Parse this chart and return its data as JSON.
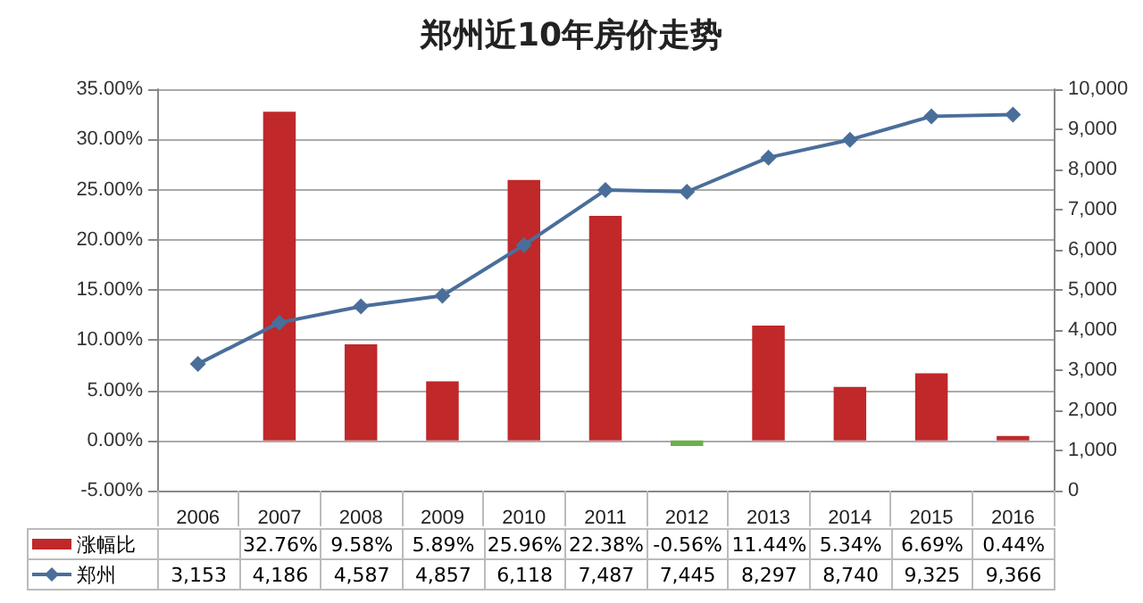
{
  "chart_data": {
    "type": "bar",
    "title": "郑州近10年房价走势",
    "categories": [
      "2006",
      "2007",
      "2008",
      "2009",
      "2010",
      "2011",
      "2012",
      "2013",
      "2014",
      "2015",
      "2016"
    ],
    "series": [
      {
        "name": "涨幅比",
        "colors": [
          "#c0282a",
          "#c0282a",
          "#c0282a",
          "#c0282a",
          "#c0282a",
          "#c0282a",
          "#6ab04c",
          "#c0282a",
          "#c0282a",
          "#c0282a",
          "#c0282a"
        ],
        "color": "#c0282a",
        "values": [
          null,
          32.76,
          9.58,
          5.89,
          25.96,
          22.38,
          -0.56,
          11.44,
          5.34,
          6.69,
          0.44
        ],
        "value_labels": [
          null,
          "32.76%",
          "9.58%",
          "5.89%",
          "25.96%",
          "22.38%",
          "-0.56%",
          "11.44%",
          "5.34%",
          "6.69%",
          "0.44%"
        ]
      },
      {
        "name": "郑州",
        "type": "line",
        "axis": "y2",
        "color": "#4a6e9a",
        "marker": "diamond",
        "values": [
          3153,
          4186,
          4587,
          4857,
          6118,
          7487,
          7445,
          8297,
          8740,
          9325,
          9366
        ],
        "value_labels": [
          "3,153",
          "4,186",
          "4,587",
          "4,857",
          "6,118",
          "7,487",
          "7,445",
          "8,297",
          "8,740",
          "9,325",
          "9,366"
        ]
      }
    ],
    "ylim": [
      -5,
      35
    ],
    "yticks": [
      {
        "value": -5,
        "label": "-5.00%"
      },
      {
        "value": 0,
        "label": "0.00%"
      },
      {
        "value": 5,
        "label": "5.00%"
      },
      {
        "value": 10,
        "label": "10.00%"
      },
      {
        "value": 15,
        "label": "15.00%"
      },
      {
        "value": 20,
        "label": "20.00%"
      },
      {
        "value": 25,
        "label": "25.00%"
      },
      {
        "value": 30,
        "label": "30.00%"
      },
      {
        "value": 35,
        "label": "35.00%"
      }
    ],
    "y2lim": [
      0,
      10000
    ],
    "y2ticks": [
      {
        "value": 0,
        "label": "0"
      },
      {
        "value": 1000,
        "label": "1,000"
      },
      {
        "value": 2000,
        "label": "2,000"
      },
      {
        "value": 3000,
        "label": "3,000"
      },
      {
        "value": 4000,
        "label": "4,000"
      },
      {
        "value": 5000,
        "label": "5,000"
      },
      {
        "value": 6000,
        "label": "6,000"
      },
      {
        "value": 7000,
        "label": "7,000"
      },
      {
        "value": 8000,
        "label": "8,000"
      },
      {
        "value": 9000,
        "label": "9,000"
      },
      {
        "value": 10000,
        "label": "10,000"
      }
    ],
    "grid": "y",
    "legend": "bottom left"
  }
}
